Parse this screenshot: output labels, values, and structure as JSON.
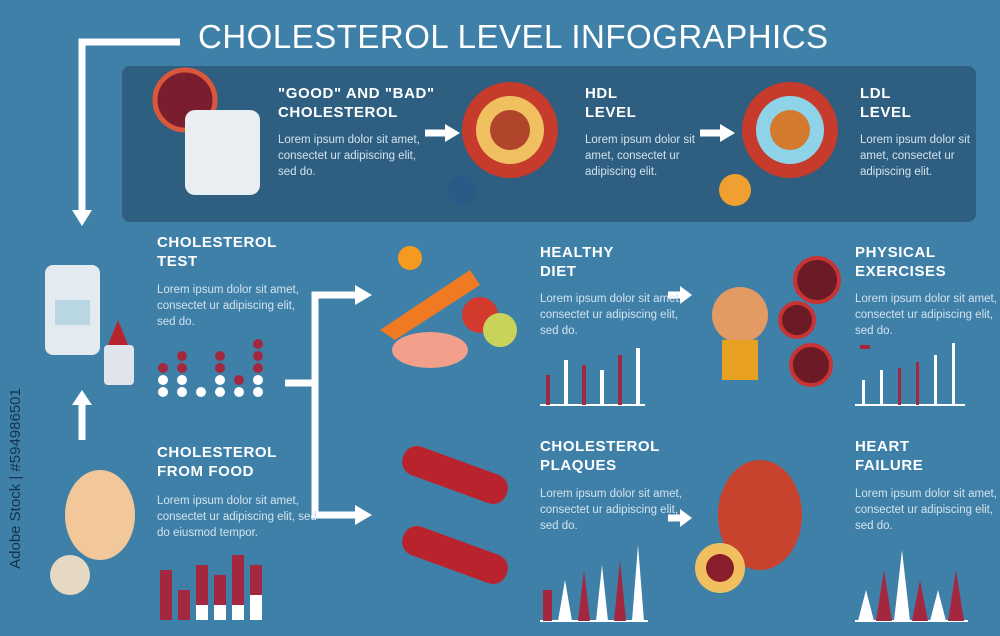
{
  "title": "CHOLESTEROL LEVEL INFOGRAPHICS",
  "sections": [
    {
      "heading": "\"GOOD\" AND \"BAD\" CHOLESTEROL",
      "body": "Lorem ipsum dolor sit amet, consectet ur adipiscing elit, sed do."
    },
    {
      "heading": "HDL LEVEL",
      "body": "Lorem ipsum dolor sit amet, consectet ur adipiscing elit."
    },
    {
      "heading": "LDL LEVEL",
      "body": "Lorem ipsum dolor sit amet, consectet ur adipiscing elit."
    },
    {
      "heading": "CHOLESTEROL TEST",
      "body": "Lorem ipsum dolor sit amet, consectet ur adipiscing elit, sed do."
    },
    {
      "heading": "HEALTHY DIET",
      "body": "Lorem ipsum dolor sit amet, consectet ur adipiscing elit, sed do."
    },
    {
      "heading": "PHYSICAL EXERCISES",
      "body": "Lorem ipsum dolor sit amet, consectet ur adipiscing elit, sed do."
    },
    {
      "heading": "CHOLESTEROL FROM FOOD",
      "body": "Lorem ipsum dolor sit amet, consectet ur adipiscing elit, sed do eiusmod tempor."
    },
    {
      "heading": "CHOLESTEROL PLAQUES",
      "body": "Lorem ipsum dolor sit amet, consectet ur adipiscing elit, sed do."
    },
    {
      "heading": "HEART FAILURE",
      "body": "Lorem ipsum dolor sit amet, consectet ur adipiscing elit, sed do."
    }
  ],
  "watermark": "Adobe Stock | #594986501"
}
